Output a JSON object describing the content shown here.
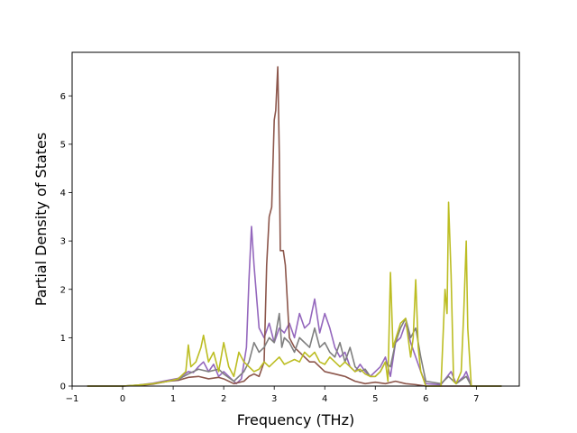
{
  "chart_data": {
    "type": "line",
    "title": "",
    "xlabel": "Frequency (THz)",
    "ylabel": "Partial Density of States",
    "xlim": [
      -1.0,
      7.85
    ],
    "ylim": [
      0,
      6.9
    ],
    "x_ticks": [
      -1,
      0,
      1,
      2,
      3,
      4,
      5,
      6,
      7
    ],
    "y_ticks": [
      0,
      1,
      2,
      3,
      4,
      5,
      6
    ],
    "grid": false,
    "legend": "none",
    "series": [
      {
        "color": "#9467bd",
        "points": [
          [
            -0.7,
            0
          ],
          [
            0.0,
            0.0
          ],
          [
            0.3,
            0.02
          ],
          [
            0.6,
            0.06
          ],
          [
            0.9,
            0.12
          ],
          [
            1.1,
            0.16
          ],
          [
            1.3,
            0.3
          ],
          [
            1.4,
            0.28
          ],
          [
            1.5,
            0.4
          ],
          [
            1.6,
            0.5
          ],
          [
            1.7,
            0.3
          ],
          [
            1.8,
            0.45
          ],
          [
            1.9,
            0.2
          ],
          [
            2.0,
            0.3
          ],
          [
            2.1,
            0.2
          ],
          [
            2.25,
            0.05
          ],
          [
            2.35,
            0.15
          ],
          [
            2.45,
            0.8
          ],
          [
            2.5,
            2.2
          ],
          [
            2.55,
            3.3
          ],
          [
            2.6,
            2.5
          ],
          [
            2.7,
            1.2
          ],
          [
            2.8,
            1.0
          ],
          [
            2.9,
            1.3
          ],
          [
            3.0,
            0.9
          ],
          [
            3.1,
            1.2
          ],
          [
            3.2,
            1.1
          ],
          [
            3.3,
            1.3
          ],
          [
            3.4,
            1.0
          ],
          [
            3.5,
            1.5
          ],
          [
            3.6,
            1.2
          ],
          [
            3.7,
            1.3
          ],
          [
            3.8,
            1.8
          ],
          [
            3.9,
            1.1
          ],
          [
            4.0,
            1.5
          ],
          [
            4.1,
            1.2
          ],
          [
            4.2,
            0.8
          ],
          [
            4.3,
            0.6
          ],
          [
            4.4,
            0.7
          ],
          [
            4.5,
            0.4
          ],
          [
            4.6,
            0.3
          ],
          [
            4.7,
            0.45
          ],
          [
            4.8,
            0.3
          ],
          [
            4.9,
            0.2
          ],
          [
            5.0,
            0.3
          ],
          [
            5.1,
            0.4
          ],
          [
            5.2,
            0.6
          ],
          [
            5.3,
            0.2
          ],
          [
            5.4,
            0.9
          ],
          [
            5.5,
            1.0
          ],
          [
            5.6,
            1.3
          ],
          [
            5.7,
            0.9
          ],
          [
            5.8,
            0.6
          ],
          [
            5.9,
            0.3
          ],
          [
            6.0,
            0.05
          ],
          [
            6.3,
            0.03
          ],
          [
            6.5,
            0.3
          ],
          [
            6.6,
            0.05
          ],
          [
            6.75,
            0.2
          ],
          [
            6.8,
            0.3
          ],
          [
            6.9,
            0.0
          ],
          [
            7.5,
            0
          ]
        ]
      },
      {
        "color": "#8c564b",
        "points": [
          [
            -0.7,
            0
          ],
          [
            0.0,
            0.0
          ],
          [
            0.3,
            0.01
          ],
          [
            0.6,
            0.04
          ],
          [
            0.9,
            0.1
          ],
          [
            1.1,
            0.12
          ],
          [
            1.3,
            0.18
          ],
          [
            1.5,
            0.2
          ],
          [
            1.7,
            0.15
          ],
          [
            1.9,
            0.18
          ],
          [
            2.0,
            0.15
          ],
          [
            2.2,
            0.05
          ],
          [
            2.4,
            0.1
          ],
          [
            2.5,
            0.2
          ],
          [
            2.6,
            0.25
          ],
          [
            2.7,
            0.2
          ],
          [
            2.8,
            0.5
          ],
          [
            2.85,
            2.5
          ],
          [
            2.9,
            3.5
          ],
          [
            2.95,
            3.7
          ],
          [
            3.0,
            5.5
          ],
          [
            3.03,
            5.7
          ],
          [
            3.07,
            6.6
          ],
          [
            3.1,
            4.8
          ],
          [
            3.12,
            2.8
          ],
          [
            3.18,
            2.8
          ],
          [
            3.22,
            2.5
          ],
          [
            3.3,
            1.0
          ],
          [
            3.4,
            0.8
          ],
          [
            3.5,
            0.7
          ],
          [
            3.6,
            0.6
          ],
          [
            3.7,
            0.5
          ],
          [
            3.8,
            0.5
          ],
          [
            3.9,
            0.4
          ],
          [
            4.0,
            0.3
          ],
          [
            4.2,
            0.25
          ],
          [
            4.4,
            0.2
          ],
          [
            4.6,
            0.1
          ],
          [
            4.8,
            0.05
          ],
          [
            5.0,
            0.08
          ],
          [
            5.2,
            0.05
          ],
          [
            5.4,
            0.1
          ],
          [
            5.6,
            0.05
          ],
          [
            5.8,
            0.03
          ],
          [
            6.0,
            0.0
          ],
          [
            7.5,
            0
          ]
        ]
      },
      {
        "color": "#7f7f7f",
        "points": [
          [
            -0.7,
            0
          ],
          [
            0.0,
            0.0
          ],
          [
            0.3,
            0.02
          ],
          [
            0.6,
            0.05
          ],
          [
            0.9,
            0.1
          ],
          [
            1.1,
            0.14
          ],
          [
            1.3,
            0.25
          ],
          [
            1.5,
            0.35
          ],
          [
            1.7,
            0.3
          ],
          [
            1.9,
            0.35
          ],
          [
            2.0,
            0.25
          ],
          [
            2.2,
            0.1
          ],
          [
            2.4,
            0.3
          ],
          [
            2.5,
            0.5
          ],
          [
            2.6,
            0.9
          ],
          [
            2.7,
            0.7
          ],
          [
            2.8,
            0.8
          ],
          [
            2.9,
            1.0
          ],
          [
            3.0,
            0.9
          ],
          [
            3.1,
            1.5
          ],
          [
            3.15,
            0.8
          ],
          [
            3.2,
            1.0
          ],
          [
            3.3,
            0.9
          ],
          [
            3.4,
            0.7
          ],
          [
            3.5,
            1.0
          ],
          [
            3.6,
            0.9
          ],
          [
            3.7,
            0.8
          ],
          [
            3.8,
            1.2
          ],
          [
            3.9,
            0.8
          ],
          [
            4.0,
            0.9
          ],
          [
            4.1,
            0.7
          ],
          [
            4.2,
            0.6
          ],
          [
            4.3,
            0.9
          ],
          [
            4.4,
            0.5
          ],
          [
            4.5,
            0.8
          ],
          [
            4.6,
            0.4
          ],
          [
            4.7,
            0.3
          ],
          [
            4.8,
            0.35
          ],
          [
            4.9,
            0.2
          ],
          [
            5.0,
            0.2
          ],
          [
            5.1,
            0.3
          ],
          [
            5.2,
            0.5
          ],
          [
            5.3,
            0.4
          ],
          [
            5.4,
            0.9
          ],
          [
            5.5,
            1.2
          ],
          [
            5.6,
            1.4
          ],
          [
            5.7,
            1.0
          ],
          [
            5.8,
            1.2
          ],
          [
            5.9,
            0.6
          ],
          [
            6.0,
            0.1
          ],
          [
            6.3,
            0.05
          ],
          [
            6.45,
            0.2
          ],
          [
            6.6,
            0.05
          ],
          [
            6.8,
            0.2
          ],
          [
            6.9,
            0.0
          ],
          [
            7.5,
            0
          ]
        ]
      },
      {
        "color": "#bcbd22",
        "points": [
          [
            -0.7,
            0
          ],
          [
            0.0,
            0.0
          ],
          [
            0.3,
            0.02
          ],
          [
            0.6,
            0.05
          ],
          [
            0.9,
            0.1
          ],
          [
            1.1,
            0.15
          ],
          [
            1.25,
            0.3
          ],
          [
            1.3,
            0.85
          ],
          [
            1.35,
            0.4
          ],
          [
            1.45,
            0.5
          ],
          [
            1.55,
            0.8
          ],
          [
            1.6,
            1.05
          ],
          [
            1.7,
            0.5
          ],
          [
            1.8,
            0.7
          ],
          [
            1.9,
            0.3
          ],
          [
            2.0,
            0.9
          ],
          [
            2.1,
            0.4
          ],
          [
            2.2,
            0.2
          ],
          [
            2.3,
            0.7
          ],
          [
            2.4,
            0.5
          ],
          [
            2.5,
            0.4
          ],
          [
            2.6,
            0.3
          ],
          [
            2.7,
            0.35
          ],
          [
            2.8,
            0.5
          ],
          [
            2.9,
            0.4
          ],
          [
            3.0,
            0.5
          ],
          [
            3.1,
            0.6
          ],
          [
            3.2,
            0.45
          ],
          [
            3.3,
            0.5
          ],
          [
            3.4,
            0.55
          ],
          [
            3.5,
            0.5
          ],
          [
            3.6,
            0.7
          ],
          [
            3.7,
            0.6
          ],
          [
            3.8,
            0.7
          ],
          [
            3.9,
            0.5
          ],
          [
            4.0,
            0.45
          ],
          [
            4.1,
            0.6
          ],
          [
            4.2,
            0.5
          ],
          [
            4.3,
            0.4
          ],
          [
            4.4,
            0.5
          ],
          [
            4.5,
            0.4
          ],
          [
            4.6,
            0.3
          ],
          [
            4.7,
            0.35
          ],
          [
            4.8,
            0.25
          ],
          [
            4.9,
            0.2
          ],
          [
            5.0,
            0.2
          ],
          [
            5.1,
            0.3
          ],
          [
            5.2,
            0.5
          ],
          [
            5.25,
            0.1
          ],
          [
            5.3,
            2.35
          ],
          [
            5.35,
            0.8
          ],
          [
            5.5,
            1.3
          ],
          [
            5.6,
            1.4
          ],
          [
            5.7,
            0.6
          ],
          [
            5.75,
            1.0
          ],
          [
            5.8,
            2.2
          ],
          [
            5.85,
            0.8
          ],
          [
            5.9,
            0.3
          ],
          [
            6.0,
            0.0
          ],
          [
            6.3,
            0.0
          ],
          [
            6.38,
            2.0
          ],
          [
            6.42,
            1.5
          ],
          [
            6.45,
            3.8
          ],
          [
            6.5,
            2.3
          ],
          [
            6.55,
            0.1
          ],
          [
            6.6,
            0.05
          ],
          [
            6.7,
            0.3
          ],
          [
            6.75,
            1.5
          ],
          [
            6.8,
            3.0
          ],
          [
            6.83,
            1.2
          ],
          [
            6.9,
            0.0
          ],
          [
            7.5,
            0
          ]
        ]
      }
    ]
  }
}
